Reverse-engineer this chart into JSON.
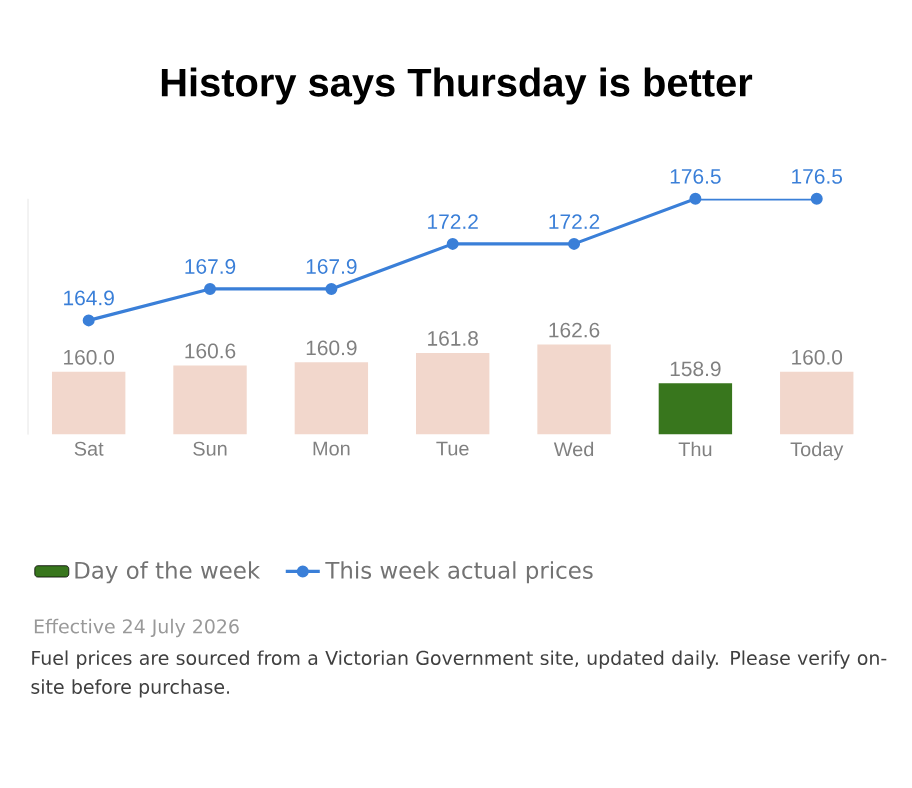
{
  "chart_data": {
    "type": "bar",
    "title": "History says Thursday is better",
    "categories": [
      "Sat",
      "Sun",
      "Mon",
      "Tue",
      "Wed",
      "Thu",
      "Today"
    ],
    "series": [
      {
        "name": "Day of the week",
        "color": "#38761d",
        "colors": [
          "#f2d7cc",
          "#f2d7cc",
          "#f2d7cc",
          "#f2d7cc",
          "#f2d7cc",
          "#38761d",
          "#f2d7cc"
        ],
        "values": [
          160.0,
          160.6,
          160.9,
          161.8,
          162.6,
          158.9,
          160.0
        ],
        "value_labels": [
          "160.0",
          "160.6",
          "160.9",
          "161.8",
          "162.6",
          "158.9",
          "160.0"
        ]
      },
      {
        "name": "This week actual prices",
        "type": "line",
        "color": "#3a7fd8",
        "marker": "circle",
        "values": [
          164.9,
          167.9,
          167.9,
          172.2,
          172.2,
          176.5,
          176.5
        ],
        "value_labels": [
          "164.9",
          "167.9",
          "167.9",
          "172.2",
          "172.2",
          "176.5",
          "176.5"
        ]
      }
    ],
    "ylim": [
      154,
      176.5
    ],
    "legend": "bottom left",
    "grid": false,
    "annotations": [
      "Effective 24 July 2026",
      "Fuel prices are sourced from a Victorian Government site, updated daily. Please verify on-site before purchase."
    ]
  }
}
